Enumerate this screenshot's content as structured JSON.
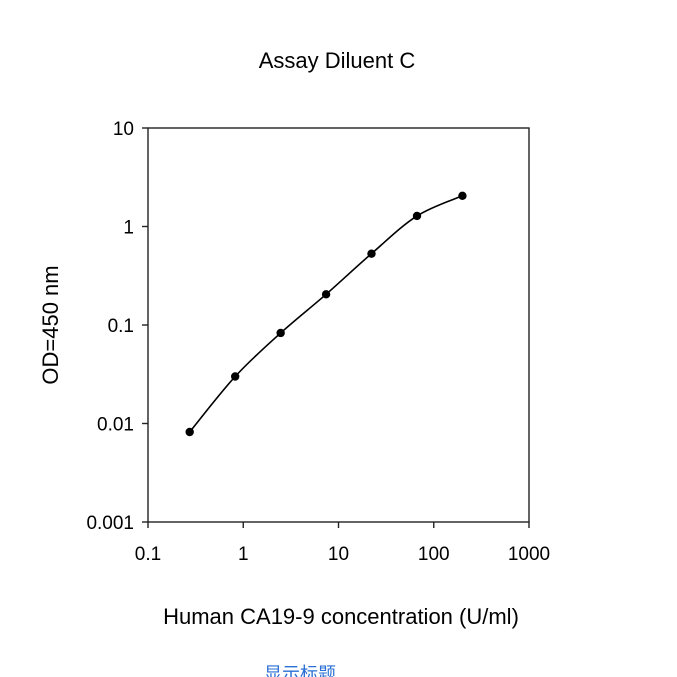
{
  "chart_data": {
    "type": "scatter",
    "title": "Assay Diluent C",
    "xlabel": "Human CA19-9 concentration (U/ml)",
    "ylabel": "OD=450 nm",
    "x_scale": "log",
    "y_scale": "log",
    "xlim": [
      0.1,
      1000
    ],
    "ylim": [
      0.001,
      10
    ],
    "x_ticks": [
      "0.1",
      "1",
      "10",
      "100",
      "1000"
    ],
    "y_ticks": [
      "0.001",
      "0.01",
      "0.1",
      "1",
      "10"
    ],
    "grid": false,
    "legend": "none",
    "series": [
      {
        "points": [
          {
            "x": 0.274,
            "y": 0.0082
          },
          {
            "x": 0.823,
            "y": 0.03
          },
          {
            "x": 2.47,
            "y": 0.083
          },
          {
            "x": 7.41,
            "y": 0.205
          },
          {
            "x": 22.2,
            "y": 0.53
          },
          {
            "x": 66.7,
            "y": 1.28
          },
          {
            "x": 200,
            "y": 2.05
          }
        ],
        "marker_color": "#000000",
        "line_color": "#000000"
      }
    ]
  },
  "footer": {
    "link_text": "显示标题"
  }
}
